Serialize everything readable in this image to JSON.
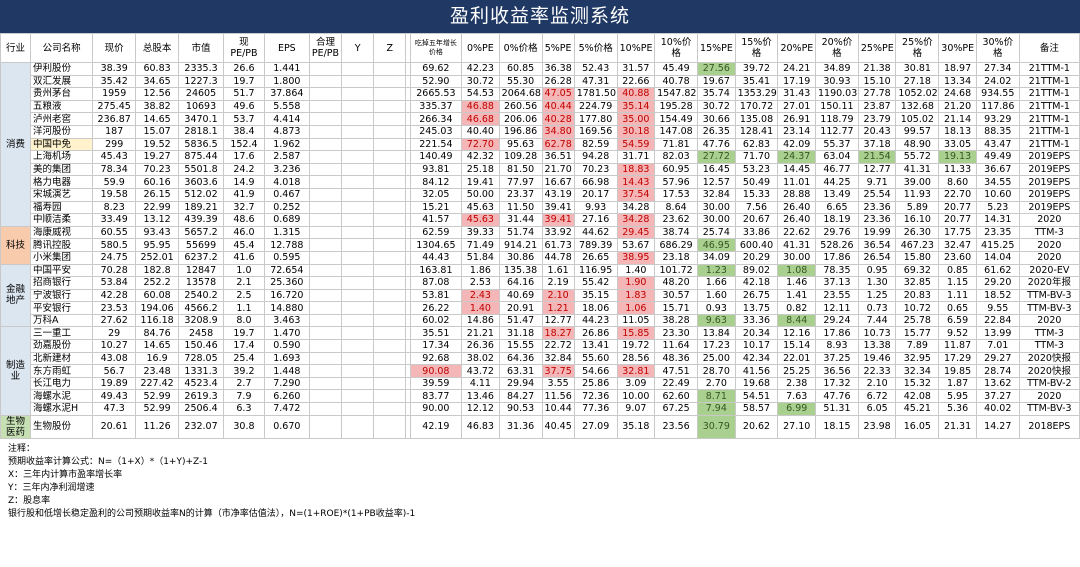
{
  "title": "盈利收益率监测系统",
  "headers": [
    "行业",
    "公司名称",
    "现价",
    "总股本",
    "市值",
    "现PE/PB",
    "EPS",
    "合理PE/PB",
    "Y",
    "Z",
    "",
    "吃掉五年增长价格",
    "0%PE",
    "0%价格",
    "5%PE",
    "5%价格",
    "10%PE",
    "10%价格",
    "15%PE",
    "15%价格",
    "20%PE",
    "20%价格",
    "25%PE",
    "25%价格",
    "30%PE",
    "30%价格",
    "备注"
  ],
  "groups": [
    {
      "name": "消费",
      "type": "consumer",
      "rows": [
        {
          "c": [
            "伊利股份",
            "38.39",
            "60.83",
            "2335.3",
            "26.6",
            "1.441",
            "",
            "",
            "",
            "",
            "69.62",
            "42.23",
            "60.85",
            "36.38",
            "52.43",
            "31.57",
            "45.49",
            "27.56",
            "39.72",
            "24.21",
            "34.89",
            "21.38",
            "30.81",
            "18.97",
            "27.34",
            "21TTM-1"
          ],
          "hl": {
            "17": "g"
          }
        },
        {
          "c": [
            "双汇发展",
            "35.42",
            "34.65",
            "1227.3",
            "19.7",
            "1.800",
            "",
            "",
            "",
            "",
            "52.90",
            "30.72",
            "55.30",
            "26.28",
            "47.31",
            "22.66",
            "40.78",
            "19.67",
            "35.41",
            "17.19",
            "30.93",
            "15.10",
            "27.18",
            "13.34",
            "24.02",
            "21TTM-1"
          ],
          "hl": {}
        },
        {
          "c": [
            "贵州茅台",
            "1959",
            "12.56",
            "24605",
            "51.7",
            "37.864",
            "",
            "",
            "",
            "",
            "2665.53",
            "54.53",
            "2064.68",
            "47.05",
            "1781.50",
            "40.88",
            "1547.82",
            "35.74",
            "1353.29",
            "31.43",
            "1190.03",
            "27.78",
            "1052.02",
            "24.68",
            "934.55",
            "21TTM-1"
          ],
          "hl": {
            "13": "r",
            "15": "r"
          }
        },
        {
          "c": [
            "五粮液",
            "275.45",
            "38.82",
            "10693",
            "49.6",
            "5.558",
            "",
            "",
            "",
            "",
            "335.37",
            "46.88",
            "260.56",
            "40.44",
            "224.79",
            "35.14",
            "195.28",
            "30.72",
            "170.72",
            "27.01",
            "150.11",
            "23.87",
            "132.68",
            "21.20",
            "117.86",
            "21TTM-1"
          ],
          "hl": {
            "11": "r",
            "13": "r",
            "15": "r"
          }
        },
        {
          "c": [
            "泸州老窖",
            "236.87",
            "14.65",
            "3470.1",
            "53.7",
            "4.414",
            "",
            "",
            "",
            "",
            "266.34",
            "46.68",
            "206.06",
            "40.28",
            "177.80",
            "35.00",
            "154.49",
            "30.66",
            "135.08",
            "26.91",
            "118.79",
            "23.79",
            "105.02",
            "21.14",
            "93.29",
            "21TTM-1"
          ],
          "hl": {
            "11": "r",
            "13": "r",
            "15": "r"
          }
        },
        {
          "c": [
            "洋河股份",
            "187",
            "15.07",
            "2818.1",
            "38.4",
            "4.873",
            "",
            "",
            "",
            "",
            "245.03",
            "40.40",
            "196.86",
            "34.80",
            "169.56",
            "30.18",
            "147.08",
            "26.35",
            "128.41",
            "23.14",
            "112.77",
            "20.43",
            "99.57",
            "18.13",
            "88.35",
            "21TTM-1"
          ],
          "hl": {
            "13": "r",
            "15": "r"
          }
        },
        {
          "c": [
            "中国中免",
            "299",
            "19.52",
            "5836.5",
            "152.4",
            "1.962",
            "",
            "",
            "",
            "",
            "221.54",
            "72.70",
            "95.63",
            "62.78",
            "82.59",
            "54.59",
            "71.81",
            "47.76",
            "62.83",
            "42.09",
            "55.37",
            "37.18",
            "48.90",
            "33.05",
            "43.47",
            "21TTM-1"
          ],
          "hl": {
            "9": "r",
            "11": "r",
            "13": "r",
            "15": "r"
          },
          "nmy": true
        },
        {
          "c": [
            "上海机场",
            "45.43",
            "19.27",
            "875.44",
            "17.6",
            "2.587",
            "",
            "",
            "",
            "",
            "140.49",
            "42.32",
            "109.28",
            "36.51",
            "94.28",
            "31.71",
            "82.03",
            "27.72",
            "71.70",
            "24.37",
            "63.04",
            "21.54",
            "55.72",
            "19.13",
            "49.49",
            "2019EPS"
          ],
          "hl": {
            "17": "g",
            "19": "g",
            "21": "g",
            "23": "g"
          }
        },
        {
          "c": [
            "美的集团",
            "78.34",
            "70.23",
            "5501.8",
            "24.2",
            "3.236",
            "",
            "",
            "",
            "",
            "93.81",
            "25.18",
            "81.50",
            "21.70",
            "70.23",
            "18.83",
            "60.95",
            "16.45",
            "53.23",
            "14.45",
            "46.77",
            "12.77",
            "41.31",
            "11.33",
            "36.67",
            "2019EPS"
          ],
          "hl": {
            "15": "r"
          }
        },
        {
          "c": [
            "格力电器",
            "59.9",
            "60.16",
            "3603.6",
            "14.9",
            "4.018",
            "",
            "",
            "",
            "",
            "84.12",
            "19.41",
            "77.97",
            "16.67",
            "66.98",
            "14.43",
            "57.96",
            "12.57",
            "50.49",
            "11.01",
            "44.25",
            "9.71",
            "39.00",
            "8.60",
            "34.55",
            "2019EPS"
          ],
          "hl": {
            "15": "r"
          }
        },
        {
          "c": [
            "宋城演艺",
            "19.58",
            "26.15",
            "512.02",
            "41.9",
            "0.467",
            "",
            "",
            "",
            "",
            "32.05",
            "50.00",
            "23.37",
            "43.19",
            "20.17",
            "37.54",
            "17.53",
            "32.84",
            "15.33",
            "28.88",
            "13.49",
            "25.54",
            "11.93",
            "22.70",
            "10.60",
            "2019EPS"
          ],
          "hl": {
            "15": "r"
          }
        },
        {
          "c": [
            "福寿园",
            "8.23",
            "22.99",
            "189.21",
            "32.7",
            "0.252",
            "",
            "",
            "",
            "",
            "15.21",
            "45.63",
            "11.50",
            "39.41",
            "9.93",
            "34.28",
            "8.64",
            "30.00",
            "7.56",
            "26.40",
            "6.65",
            "23.36",
            "5.89",
            "20.77",
            "5.23",
            "2019EPS"
          ],
          "hl": {}
        },
        {
          "c": [
            "中顺洁柔",
            "33.49",
            "13.12",
            "439.39",
            "48.6",
            "0.689",
            "",
            "",
            "",
            "",
            "41.57",
            "45.63",
            "31.44",
            "39.41",
            "27.16",
            "34.28",
            "23.62",
            "30.00",
            "20.67",
            "26.40",
            "18.19",
            "23.36",
            "16.10",
            "20.77",
            "14.31",
            "2020"
          ],
          "hl": {
            "11": "r",
            "13": "r",
            "15": "r"
          }
        }
      ]
    },
    {
      "name": "科技",
      "type": "tech",
      "rows": [
        {
          "c": [
            "海康威视",
            "60.55",
            "93.43",
            "5657.2",
            "46.0",
            "1.315",
            "",
            "",
            "",
            "",
            "62.59",
            "39.33",
            "51.74",
            "33.92",
            "44.62",
            "29.45",
            "38.74",
            "25.74",
            "33.86",
            "22.62",
            "29.76",
            "19.99",
            "26.30",
            "17.75",
            "23.35",
            "TTM-3"
          ],
          "hl": {
            "15": "r"
          }
        },
        {
          "c": [
            "腾讯控股",
            "580.5",
            "95.95",
            "55699",
            "45.4",
            "12.788",
            "",
            "",
            "",
            "",
            "1304.65",
            "71.49",
            "914.21",
            "61.73",
            "789.39",
            "53.67",
            "686.29",
            "46.95",
            "600.40",
            "41.31",
            "528.26",
            "36.54",
            "467.23",
            "32.47",
            "415.25",
            "2020"
          ],
          "hl": {
            "17": "g"
          }
        },
        {
          "c": [
            "小米集团",
            "24.75",
            "252.01",
            "6237.2",
            "41.6",
            "0.595",
            "",
            "",
            "",
            "",
            "44.43",
            "51.84",
            "30.86",
            "44.78",
            "26.65",
            "38.95",
            "23.18",
            "34.09",
            "20.29",
            "30.00",
            "17.86",
            "26.54",
            "15.80",
            "23.60",
            "14.04",
            "2020"
          ],
          "hl": {
            "15": "r"
          }
        }
      ]
    },
    {
      "name": "金融地产",
      "type": "fin",
      "rows": [
        {
          "c": [
            "中国平安",
            "70.28",
            "182.8",
            "12847",
            "1.0",
            "72.654",
            "",
            "",
            "",
            "",
            "163.81",
            "1.86",
            "135.38",
            "1.61",
            "116.95",
            "1.40",
            "101.72",
            "1.23",
            "89.02",
            "1.08",
            "78.35",
            "0.95",
            "69.32",
            "0.85",
            "61.62",
            "2020-EV"
          ],
          "hl": {
            "17": "g",
            "19": "g"
          }
        },
        {
          "c": [
            "招商银行",
            "53.84",
            "252.2",
            "13578",
            "2.1",
            "25.360",
            "",
            "",
            "",
            "",
            "87.08",
            "2.53",
            "64.16",
            "2.19",
            "55.42",
            "1.90",
            "48.20",
            "1.66",
            "42.18",
            "1.46",
            "37.13",
            "1.30",
            "32.85",
            "1.15",
            "29.20",
            "2020年报"
          ],
          "hl": {
            "15": "r"
          }
        },
        {
          "c": [
            "宁波银行",
            "42.28",
            "60.08",
            "2540.2",
            "2.5",
            "16.720",
            "",
            "",
            "",
            "",
            "53.81",
            "2.43",
            "40.69",
            "2.10",
            "35.15",
            "1.83",
            "30.57",
            "1.60",
            "26.75",
            "1.41",
            "23.55",
            "1.25",
            "20.83",
            "1.11",
            "18.52",
            "TTM-BV-3"
          ],
          "hl": {
            "11": "r",
            "13": "r",
            "15": "r"
          }
        },
        {
          "c": [
            "平安银行",
            "23.53",
            "194.06",
            "4566.2",
            "1.1",
            "14.880",
            "",
            "",
            "",
            "",
            "26.22",
            "1.40",
            "20.91",
            "1.21",
            "18.06",
            "1.06",
            "15.71",
            "0.93",
            "13.75",
            "0.82",
            "12.11",
            "0.73",
            "10.72",
            "0.65",
            "9.55",
            "TTM-BV-3"
          ],
          "hl": {
            "11": "r",
            "13": "r",
            "15": "r"
          }
        },
        {
          "c": [
            "万科A",
            "27.62",
            "116.18",
            "3208.9",
            "8.0",
            "3.463",
            "",
            "",
            "",
            "",
            "60.02",
            "14.86",
            "51.47",
            "12.77",
            "44.23",
            "11.05",
            "38.28",
            "9.63",
            "33.36",
            "8.44",
            "29.24",
            "7.44",
            "25.78",
            "6.59",
            "22.84",
            "2020"
          ],
          "hl": {
            "17": "g",
            "19": "g"
          }
        }
      ]
    },
    {
      "name": "制造业",
      "type": "mfg",
      "rows": [
        {
          "c": [
            "三一重工",
            "29",
            "84.76",
            "2458",
            "19.7",
            "1.470",
            "",
            "",
            "",
            "",
            "35.51",
            "21.21",
            "31.18",
            "18.27",
            "26.86",
            "15.85",
            "23.30",
            "13.84",
            "20.34",
            "12.16",
            "17.86",
            "10.73",
            "15.77",
            "9.52",
            "13.99",
            "TTM-3"
          ],
          "hl": {
            "13": "r",
            "15": "r"
          }
        },
        {
          "c": [
            "劲嘉股份",
            "10.27",
            "14.65",
            "150.46",
            "17.4",
            "0.590",
            "",
            "",
            "",
            "",
            "17.34",
            "26.36",
            "15.55",
            "22.72",
            "13.41",
            "19.72",
            "11.64",
            "17.23",
            "10.17",
            "15.14",
            "8.93",
            "13.38",
            "7.89",
            "11.87",
            "7.01",
            "TTM-3"
          ],
          "hl": {}
        },
        {
          "c": [
            "北新建材",
            "43.08",
            "16.9",
            "728.05",
            "25.4",
            "1.693",
            "",
            "",
            "",
            "",
            "92.68",
            "38.02",
            "64.36",
            "32.84",
            "55.60",
            "28.56",
            "48.36",
            "25.00",
            "42.34",
            "22.01",
            "37.25",
            "19.46",
            "32.95",
            "17.29",
            "29.27",
            "2020快报"
          ],
          "hl": {}
        },
        {
          "c": [
            "东方雨虹",
            "56.7",
            "23.48",
            "1331.3",
            "39.2",
            "1.448",
            "",
            "",
            "",
            "",
            "90.08",
            "43.72",
            "63.31",
            "37.75",
            "54.66",
            "32.81",
            "47.51",
            "28.70",
            "41.56",
            "25.25",
            "36.56",
            "22.33",
            "32.34",
            "19.85",
            "28.74",
            "2020快报"
          ],
          "hl": {
            "10": "r",
            "13": "r",
            "15": "r"
          }
        },
        {
          "c": [
            "长江电力",
            "19.89",
            "227.42",
            "4523.4",
            "2.7",
            "7.290",
            "",
            "",
            "",
            "",
            "39.59",
            "4.11",
            "29.94",
            "3.55",
            "25.86",
            "3.09",
            "22.49",
            "2.70",
            "19.68",
            "2.38",
            "17.32",
            "2.10",
            "15.32",
            "1.87",
            "13.62",
            "TTM-BV-2"
          ],
          "hl": {}
        },
        {
          "c": [
            "海螺水泥",
            "49.43",
            "52.99",
            "2619.3",
            "7.9",
            "6.260",
            "",
            "",
            "",
            "",
            "83.77",
            "13.46",
            "84.27",
            "11.56",
            "72.36",
            "10.00",
            "62.60",
            "8.71",
            "54.51",
            "7.63",
            "47.76",
            "6.72",
            "42.08",
            "5.95",
            "37.27",
            "2020"
          ],
          "hl": {
            "17": "g"
          }
        },
        {
          "c": [
            "海螺水泥H",
            "47.3",
            "52.99",
            "2506.4",
            "6.3",
            "7.472",
            "",
            "",
            "",
            "",
            "90.00",
            "12.12",
            "90.53",
            "10.44",
            "77.36",
            "9.07",
            "67.25",
            "7.94",
            "58.57",
            "6.99",
            "51.31",
            "6.05",
            "45.21",
            "5.36",
            "40.02",
            "TTM-BV-3"
          ],
          "hl": {
            "17": "g",
            "19": "g"
          }
        }
      ]
    },
    {
      "name": "生物医药",
      "type": "bio",
      "rows": [
        {
          "c": [
            "生物股份",
            "20.61",
            "11.26",
            "232.07",
            "30.8",
            "0.670",
            "",
            "",
            "",
            "",
            "42.19",
            "46.83",
            "31.36",
            "40.45",
            "27.09",
            "35.18",
            "23.56",
            "30.79",
            "20.62",
            "27.10",
            "18.15",
            "23.98",
            "16.05",
            "21.31",
            "14.27",
            "2018EPS"
          ],
          "hl": {
            "17": "g"
          }
        }
      ]
    }
  ],
  "notes": [
    "注释：",
    "预期收益率计算公式：N=（1+X）*（1+Y)+Z-1",
    "X：三年内计算市盈率增长率",
    "Y：三年内净利润增速",
    "Z：股息率",
    "银行股和低增长稳定盈利的公司预期收益率N的计算（市净率估值法），N=(1+ROE)*(1+PB收益率)-1"
  ]
}
